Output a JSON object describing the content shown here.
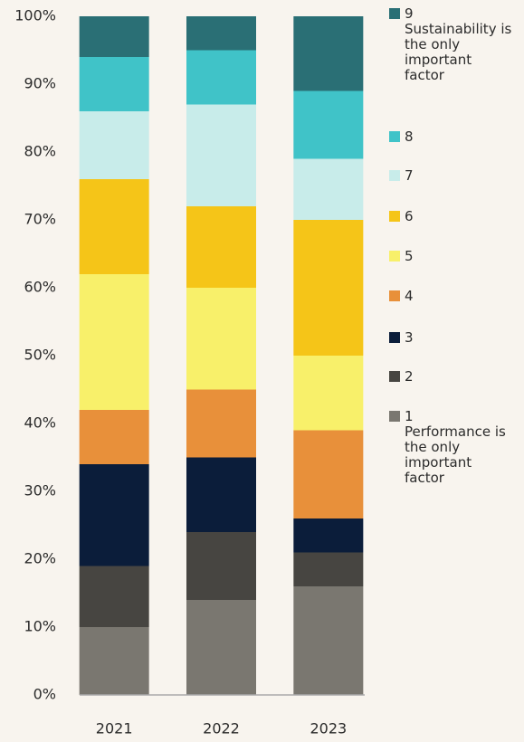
{
  "chart_data": {
    "type": "stacked-bar",
    "categories": [
      "2021",
      "2022",
      "2023"
    ],
    "series": [
      {
        "name": "1",
        "note": "Performance is the only important factor",
        "color": "#7a7770",
        "values": [
          10,
          14,
          16
        ]
      },
      {
        "name": "2",
        "color": "#474541",
        "values": [
          9,
          10,
          5
        ]
      },
      {
        "name": "3",
        "color": "#0b1d3a",
        "values": [
          15,
          11,
          5
        ]
      },
      {
        "name": "4",
        "color": "#e8903a",
        "values": [
          8,
          10,
          13
        ]
      },
      {
        "name": "5",
        "color": "#f8f06a",
        "values": [
          20,
          15,
          11
        ]
      },
      {
        "name": "6",
        "color": "#f5c518",
        "values": [
          14,
          12,
          20
        ]
      },
      {
        "name": "7",
        "color": "#c8ecea",
        "values": [
          10,
          15,
          9
        ]
      },
      {
        "name": "8",
        "color": "#40c3c8",
        "values": [
          8,
          8,
          10
        ]
      },
      {
        "name": "9",
        "note": "Sustainability is the only important factor",
        "color": "#2a6f75",
        "values": [
          6,
          5,
          11
        ]
      }
    ],
    "ylim": [
      0,
      100
    ],
    "yticks": [
      {
        "value": 0,
        "label": "0%"
      },
      {
        "value": 10,
        "label": "10%"
      },
      {
        "value": 20,
        "label": "20%"
      },
      {
        "value": 30,
        "label": "30%"
      },
      {
        "value": 40,
        "label": "40%"
      },
      {
        "value": 50,
        "label": "50%"
      },
      {
        "value": 60,
        "label": "60%"
      },
      {
        "value": 70,
        "label": "70%"
      },
      {
        "value": 80,
        "label": "80%"
      },
      {
        "value": 90,
        "label": "90%"
      },
      {
        "value": 100,
        "label": "100%"
      }
    ],
    "legend": "right"
  }
}
